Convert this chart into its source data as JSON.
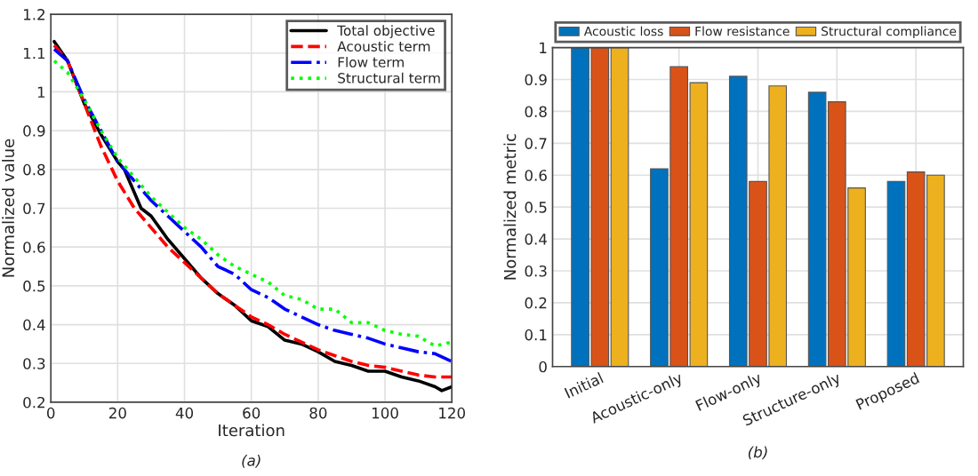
{
  "chart_data": [
    {
      "type": "line",
      "xlabel": "Iteration",
      "ylabel": "Normalized value",
      "annotations": [
        "(a)"
      ],
      "xlim": [
        0,
        120
      ],
      "xticks": [
        0,
        20,
        40,
        60,
        80,
        100,
        120
      ],
      "ylim": [
        0.2,
        1.2
      ],
      "yticks": [
        0.2,
        0.3,
        0.4,
        0.5,
        0.6,
        0.7,
        0.8,
        0.9,
        1,
        1.1,
        1.2
      ],
      "grid": true,
      "legend": "top right",
      "series": [
        {
          "name": "Total objective",
          "color": "#000000",
          "line_style": "solid",
          "x": [
            1,
            5,
            10,
            15,
            20,
            22,
            25,
            27,
            30,
            35,
            40,
            45,
            50,
            55,
            60,
            65,
            70,
            75,
            80,
            85,
            90,
            95,
            100,
            105,
            110,
            115,
            117,
            120
          ],
          "values": [
            1.13,
            1.08,
            0.97,
            0.89,
            0.82,
            0.8,
            0.74,
            0.7,
            0.68,
            0.62,
            0.57,
            0.52,
            0.48,
            0.45,
            0.41,
            0.395,
            0.36,
            0.35,
            0.33,
            0.305,
            0.295,
            0.28,
            0.28,
            0.265,
            0.255,
            0.24,
            0.23,
            0.24
          ]
        },
        {
          "name": "Acoustic term",
          "color": "#ff0000",
          "line_style": "dashed",
          "x": [
            1,
            5,
            10,
            15,
            20,
            25,
            30,
            35,
            40,
            45,
            50,
            55,
            60,
            65,
            70,
            75,
            80,
            85,
            90,
            95,
            100,
            105,
            110,
            115,
            120
          ],
          "values": [
            1.12,
            1.08,
            0.97,
            0.86,
            0.77,
            0.7,
            0.65,
            0.6,
            0.56,
            0.52,
            0.48,
            0.45,
            0.42,
            0.4,
            0.375,
            0.355,
            0.335,
            0.32,
            0.305,
            0.295,
            0.29,
            0.28,
            0.27,
            0.265,
            0.265
          ]
        },
        {
          "name": "Flow term",
          "color": "#0000ff",
          "line_style": "dashdot",
          "x": [
            1,
            5,
            10,
            15,
            20,
            25,
            30,
            35,
            40,
            45,
            50,
            55,
            60,
            65,
            70,
            75,
            80,
            85,
            90,
            95,
            100,
            105,
            110,
            115,
            120
          ],
          "values": [
            1.11,
            1.08,
            0.98,
            0.9,
            0.82,
            0.77,
            0.72,
            0.68,
            0.64,
            0.6,
            0.55,
            0.53,
            0.49,
            0.47,
            0.44,
            0.42,
            0.4,
            0.385,
            0.375,
            0.365,
            0.35,
            0.34,
            0.33,
            0.325,
            0.305
          ]
        },
        {
          "name": "Structural term",
          "color": "#00ff00",
          "line_style": "dotted",
          "x": [
            1,
            5,
            10,
            15,
            20,
            25,
            30,
            35,
            40,
            45,
            50,
            55,
            60,
            65,
            70,
            75,
            80,
            85,
            90,
            95,
            100,
            105,
            110,
            115,
            120
          ],
          "values": [
            1.08,
            1.05,
            0.98,
            0.9,
            0.83,
            0.78,
            0.73,
            0.69,
            0.65,
            0.62,
            0.58,
            0.55,
            0.53,
            0.51,
            0.475,
            0.465,
            0.44,
            0.44,
            0.405,
            0.405,
            0.385,
            0.375,
            0.37,
            0.345,
            0.355
          ]
        }
      ]
    },
    {
      "type": "bar",
      "ylabel": "Normalized metric",
      "annotations": [
        "(b)"
      ],
      "categories": [
        "Initial",
        "Acoustic-only",
        "Flow-only",
        "Structure-only",
        "Proposed"
      ],
      "ylim": [
        0,
        1
      ],
      "yticks": [
        0,
        0.1,
        0.2,
        0.3,
        0.4,
        0.5,
        0.6,
        0.7,
        0.8,
        0.9,
        1
      ],
      "grid": true,
      "legend": "top",
      "series": [
        {
          "name": "Acoustic loss",
          "color": "#0072bd",
          "values": [
            1,
            0.62,
            0.91,
            0.86,
            0.58
          ]
        },
        {
          "name": "Flow resistance",
          "color": "#d95319",
          "values": [
            1,
            0.94,
            0.58,
            0.83,
            0.61
          ]
        },
        {
          "name": "Structural compliance",
          "color": "#edb120",
          "values": [
            1,
            0.89,
            0.88,
            0.56,
            0.6
          ]
        }
      ]
    }
  ]
}
